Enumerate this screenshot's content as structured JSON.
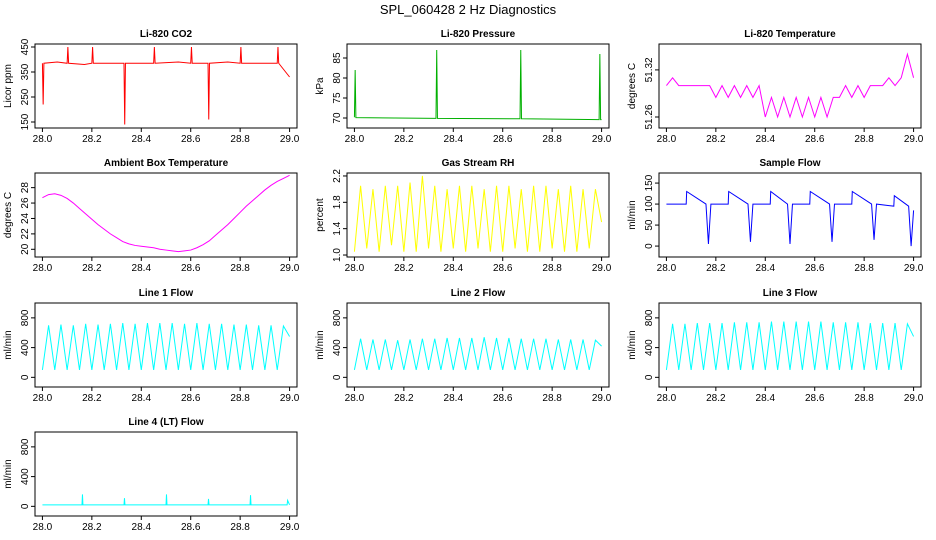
{
  "title": "SPL_060428  2 Hz Diagnostics",
  "chart_data": [
    {
      "type": "line",
      "title": "Li-820 CO2",
      "ylabel": "Licor ppm",
      "color": "#ff0000",
      "x": [
        28,
        28.003,
        28.006,
        28.06,
        28.1,
        28.103,
        28.106,
        28.17,
        28.2,
        28.203,
        28.206,
        28.33,
        28.333,
        28.336,
        28.45,
        28.453,
        28.456,
        28.55,
        28.6,
        28.603,
        28.606,
        28.67,
        28.673,
        28.676,
        28.75,
        28.8,
        28.803,
        28.806,
        28.9,
        28.95,
        28.953,
        28.956,
        29
      ],
      "values": [
        385,
        220,
        385,
        390,
        385,
        450,
        385,
        380,
        385,
        450,
        385,
        385,
        140,
        385,
        385,
        450,
        385,
        390,
        385,
        450,
        385,
        385,
        160,
        385,
        390,
        385,
        450,
        385,
        385,
        385,
        450,
        385,
        330
      ],
      "xlim": [
        27.97,
        29.03
      ],
      "xticks": [
        {
          "value": 28,
          "label": "28.0"
        },
        28.2,
        28.4,
        28.6,
        28.8,
        {
          "value": 29,
          "label": "29.0"
        }
      ],
      "ylim": [
        126,
        462
      ],
      "yticks": [
        150,
        250,
        350,
        450
      ]
    },
    {
      "type": "line",
      "title": "Li-820 Pressure",
      "ylabel": "kPa",
      "color": "#00b000",
      "x": [
        28,
        28.003,
        28.006,
        28.33,
        28.333,
        28.336,
        28.67,
        28.673,
        28.676,
        28.99,
        28.993,
        28.996,
        29
      ],
      "values": [
        70.2,
        82,
        70.1,
        69.9,
        87,
        69.9,
        69.8,
        87,
        69.8,
        69.6,
        86,
        69.6,
        69.6
      ],
      "xlim": [
        27.97,
        29.03
      ],
      "xticks": [
        {
          "value": 28,
          "label": "28.0"
        },
        28.2,
        28.4,
        28.6,
        28.8,
        {
          "value": 29,
          "label": "29.0"
        }
      ],
      "ylim": [
        67.5,
        88.5
      ],
      "yticks": [
        70,
        75,
        80,
        85
      ]
    },
    {
      "type": "line",
      "title": "Li-820 Temperature",
      "ylabel": "degrees C",
      "color": "#ff00ff",
      "x": [
        28,
        28.025,
        28.05,
        28.075,
        28.1,
        28.125,
        28.15,
        28.175,
        28.2,
        28.225,
        28.25,
        28.275,
        28.3,
        28.325,
        28.35,
        28.375,
        28.4,
        28.425,
        28.45,
        28.475,
        28.5,
        28.525,
        28.55,
        28.575,
        28.6,
        28.625,
        28.65,
        28.675,
        28.7,
        28.725,
        28.75,
        28.775,
        28.8,
        28.825,
        28.85,
        28.875,
        28.9,
        28.925,
        28.95,
        28.975,
        29
      ],
      "values": [
        51.3,
        51.31,
        51.3,
        51.3,
        51.3,
        51.3,
        51.3,
        51.3,
        51.285,
        51.3,
        51.285,
        51.3,
        51.285,
        51.3,
        51.285,
        51.3,
        51.26,
        51.285,
        51.26,
        51.285,
        51.26,
        51.285,
        51.26,
        51.285,
        51.26,
        51.285,
        51.26,
        51.285,
        51.285,
        51.3,
        51.285,
        51.3,
        51.285,
        51.3,
        51.3,
        51.3,
        51.31,
        51.3,
        51.31,
        51.34,
        51.31
      ],
      "xlim": [
        27.97,
        29.03
      ],
      "xticks": [
        {
          "value": 28,
          "label": "28.0"
        },
        28.2,
        28.4,
        28.6,
        28.8,
        {
          "value": 29,
          "label": "29.0"
        }
      ],
      "ylim": [
        51.246,
        51.353
      ],
      "yticks": [
        51.26,
        51.32
      ]
    },
    {
      "type": "line",
      "title": "Ambient Box Temperature",
      "ylabel": "degrees C",
      "color": "#ff00ff",
      "x": [
        28,
        28.025,
        28.05,
        28.075,
        28.1,
        28.125,
        28.15,
        28.175,
        28.2,
        28.225,
        28.25,
        28.275,
        28.3,
        28.325,
        28.35,
        28.375,
        28.4,
        28.425,
        28.45,
        28.475,
        28.5,
        28.525,
        28.55,
        28.575,
        28.6,
        28.625,
        28.65,
        28.675,
        28.7,
        28.725,
        28.75,
        28.775,
        28.8,
        28.825,
        28.85,
        28.875,
        28.9,
        28.925,
        28.95,
        28.975,
        29
      ],
      "values": [
        26.7,
        27.1,
        27.2,
        27.0,
        26.6,
        26.0,
        25.3,
        24.6,
        23.9,
        23.2,
        22.6,
        22.0,
        21.5,
        21.0,
        20.7,
        20.5,
        20.4,
        20.3,
        20.2,
        20.0,
        19.9,
        19.8,
        19.7,
        19.8,
        19.9,
        20.2,
        20.6,
        21.1,
        21.8,
        22.5,
        23.2,
        24.0,
        24.8,
        25.6,
        26.3,
        27.0,
        27.7,
        28.3,
        28.8,
        29.2,
        29.6
      ],
      "xlim": [
        27.97,
        29.03
      ],
      "xticks": [
        {
          "value": 28,
          "label": "28.0"
        },
        28.2,
        28.4,
        28.6,
        28.8,
        {
          "value": 29,
          "label": "29.0"
        }
      ],
      "ylim": [
        19,
        29.9
      ],
      "yticks": [
        20,
        22,
        24,
        26,
        28
      ]
    },
    {
      "type": "line",
      "title": "Gas Stream RH",
      "ylabel": "percent",
      "color": "#ffff00",
      "x": [
        28,
        28.025,
        28.05,
        28.075,
        28.1,
        28.125,
        28.15,
        28.175,
        28.2,
        28.225,
        28.25,
        28.275,
        28.3,
        28.325,
        28.35,
        28.375,
        28.4,
        28.425,
        28.45,
        28.475,
        28.5,
        28.525,
        28.55,
        28.575,
        28.6,
        28.625,
        28.65,
        28.675,
        28.7,
        28.725,
        28.75,
        28.775,
        28.8,
        28.825,
        28.85,
        28.875,
        28.9,
        28.925,
        28.95,
        28.975,
        29
      ],
      "values": [
        1.05,
        2.05,
        1.1,
        2.0,
        1.05,
        2.05,
        1.15,
        2.05,
        1.05,
        2.1,
        1.05,
        2.2,
        1.1,
        2.05,
        1.05,
        2.0,
        1.1,
        2.05,
        1.05,
        2.05,
        1.1,
        2.0,
        1.05,
        2.05,
        1.05,
        2.05,
        1.1,
        2.0,
        1.05,
        2.05,
        1.05,
        2.05,
        1.1,
        2.0,
        1.05,
        2.05,
        1.05,
        2.0,
        1.1,
        2.0,
        1.5
      ],
      "xlim": [
        27.97,
        29.03
      ],
      "xticks": [
        {
          "value": 28,
          "label": "28.0"
        },
        28.2,
        28.4,
        28.6,
        28.8,
        {
          "value": 29,
          "label": "29.0"
        }
      ],
      "ylim": [
        0.97,
        2.245
      ],
      "yticks": [
        {
          "value": 1,
          "label": "1.0"
        },
        1.4,
        1.8,
        2.2
      ]
    },
    {
      "type": "line",
      "title": "Sample Flow",
      "ylabel": "ml/min",
      "color": "#0000ff",
      "x": [
        28,
        28.08,
        28.082,
        28.16,
        28.17,
        28.18,
        28.25,
        28.252,
        28.33,
        28.34,
        28.35,
        28.42,
        28.422,
        28.49,
        28.5,
        28.51,
        28.58,
        28.582,
        28.66,
        28.67,
        28.68,
        28.75,
        28.752,
        28.83,
        28.84,
        28.85,
        28.92,
        28.922,
        28.98,
        28.99,
        29
      ],
      "values": [
        100,
        100,
        130,
        100,
        5,
        100,
        100,
        130,
        100,
        10,
        100,
        100,
        130,
        100,
        5,
        100,
        100,
        130,
        100,
        10,
        100,
        100,
        130,
        100,
        15,
        100,
        95,
        120,
        95,
        0,
        85
      ],
      "xlim": [
        27.97,
        29.03
      ],
      "xticks": [
        {
          "value": 28,
          "label": "28.0"
        },
        28.2,
        28.4,
        28.6,
        28.8,
        {
          "value": 29,
          "label": "29.0"
        }
      ],
      "ylim": [
        -26,
        174
      ],
      "yticks": [
        0,
        50,
        100,
        150
      ]
    },
    {
      "type": "line",
      "title": "Line 1 Flow",
      "ylabel": "ml/min",
      "color": "#00ffff",
      "x": [
        28,
        28.025,
        28.05,
        28.075,
        28.1,
        28.125,
        28.15,
        28.175,
        28.2,
        28.225,
        28.25,
        28.275,
        28.3,
        28.325,
        28.35,
        28.375,
        28.4,
        28.425,
        28.45,
        28.475,
        28.5,
        28.525,
        28.55,
        28.575,
        28.6,
        28.625,
        28.65,
        28.675,
        28.7,
        28.725,
        28.75,
        28.775,
        28.8,
        28.825,
        28.85,
        28.875,
        28.9,
        28.925,
        28.95,
        28.975,
        29
      ],
      "values": [
        100,
        700,
        100,
        710,
        100,
        700,
        100,
        720,
        100,
        710,
        100,
        720,
        100,
        730,
        100,
        720,
        100,
        730,
        100,
        730,
        100,
        730,
        100,
        720,
        100,
        730,
        100,
        720,
        100,
        720,
        100,
        710,
        100,
        710,
        100,
        700,
        100,
        700,
        100,
        690,
        550
      ],
      "xlim": [
        27.97,
        29.03
      ],
      "xticks": [
        {
          "value": 28,
          "label": "28.0"
        },
        28.2,
        28.4,
        28.6,
        28.8,
        {
          "value": 29,
          "label": "29.0"
        }
      ],
      "ylim": [
        -130,
        1000
      ],
      "yticks": [
        0,
        400,
        800
      ]
    },
    {
      "type": "line",
      "title": "Line 2 Flow",
      "ylabel": "ml/min",
      "color": "#00ffff",
      "x": [
        28,
        28.025,
        28.05,
        28.075,
        28.1,
        28.125,
        28.15,
        28.175,
        28.2,
        28.225,
        28.25,
        28.275,
        28.3,
        28.325,
        28.35,
        28.375,
        28.4,
        28.425,
        28.45,
        28.475,
        28.5,
        28.525,
        28.55,
        28.575,
        28.6,
        28.625,
        28.65,
        28.675,
        28.7,
        28.725,
        28.75,
        28.775,
        28.8,
        28.825,
        28.85,
        28.875,
        28.9,
        28.925,
        28.95,
        28.975,
        29
      ],
      "values": [
        100,
        520,
        100,
        510,
        100,
        510,
        100,
        500,
        100,
        510,
        100,
        520,
        100,
        520,
        100,
        530,
        100,
        530,
        100,
        530,
        100,
        540,
        100,
        530,
        100,
        530,
        100,
        520,
        100,
        520,
        100,
        520,
        100,
        510,
        100,
        510,
        100,
        510,
        100,
        500,
        420
      ],
      "xlim": [
        27.97,
        29.03
      ],
      "xticks": [
        {
          "value": 28,
          "label": "28.0"
        },
        28.2,
        28.4,
        28.6,
        28.8,
        {
          "value": 29,
          "label": "29.0"
        }
      ],
      "ylim": [
        -130,
        1000
      ],
      "yticks": [
        0,
        400,
        800
      ]
    },
    {
      "type": "line",
      "title": "Line 3 Flow",
      "ylabel": "ml/min",
      "color": "#00ffff",
      "x": [
        28,
        28.025,
        28.05,
        28.075,
        28.1,
        28.125,
        28.15,
        28.175,
        28.2,
        28.225,
        28.25,
        28.275,
        28.3,
        28.325,
        28.35,
        28.375,
        28.4,
        28.425,
        28.45,
        28.475,
        28.5,
        28.525,
        28.55,
        28.575,
        28.6,
        28.625,
        28.65,
        28.675,
        28.7,
        28.725,
        28.75,
        28.775,
        28.8,
        28.825,
        28.85,
        28.875,
        28.9,
        28.925,
        28.95,
        28.975,
        29
      ],
      "values": [
        100,
        720,
        100,
        720,
        100,
        730,
        100,
        730,
        100,
        730,
        100,
        740,
        100,
        740,
        100,
        740,
        100,
        750,
        100,
        750,
        100,
        750,
        100,
        750,
        100,
        750,
        100,
        740,
        100,
        740,
        100,
        740,
        100,
        730,
        100,
        730,
        100,
        730,
        100,
        720,
        550
      ],
      "xlim": [
        27.97,
        29.03
      ],
      "xticks": [
        {
          "value": 28,
          "label": "28.0"
        },
        28.2,
        28.4,
        28.6,
        28.8,
        {
          "value": 29,
          "label": "29.0"
        }
      ],
      "ylim": [
        -130,
        1000
      ],
      "yticks": [
        0,
        400,
        800
      ]
    },
    {
      "type": "line",
      "title": "Line 4 (LT) Flow",
      "ylabel": "ml/min",
      "color": "#00ffff",
      "x": [
        28,
        28.16,
        28.162,
        28.164,
        28.33,
        28.332,
        28.334,
        28.5,
        28.502,
        28.504,
        28.67,
        28.672,
        28.674,
        28.84,
        28.842,
        28.844,
        28.99,
        28.992,
        29
      ],
      "values": [
        20,
        20,
        160,
        20,
        20,
        110,
        20,
        20,
        160,
        20,
        20,
        100,
        20,
        20,
        150,
        20,
        20,
        80,
        20
      ],
      "xlim": [
        27.97,
        29.03
      ],
      "xticks": [
        {
          "value": 28,
          "label": "28.0"
        },
        28.2,
        28.4,
        28.6,
        28.8,
        {
          "value": 29,
          "label": "29.0"
        }
      ],
      "ylim": [
        -130,
        1000
      ],
      "yticks": [
        0,
        400,
        800
      ]
    }
  ]
}
